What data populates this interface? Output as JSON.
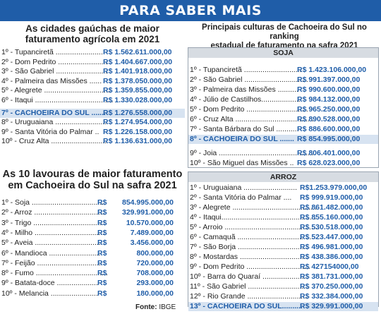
{
  "banner": "PARA SABER MAIS",
  "left_top": {
    "title_line1": "As cidades gaúchas de maior",
    "title_line2": "faturamento agrícola em 2021",
    "rows": [
      {
        "label": "1º - Tupanciretã .......................",
        "value": "R$ 1.562.611.000,00"
      },
      {
        "label": "2º - Dom Pedrito ........................",
        "value": "R$ 1.404.667.000,00"
      },
      {
        "label": "3º - São Gabriel .........................",
        "value": "R$ 1.401.918.000,00"
      },
      {
        "label": "4º - Palmeira das Missões ......",
        "value": "R$ 1.378.050.000,00"
      },
      {
        "label": "5º - Alegrete .................................",
        "value": "R$ 1.359.855.000,00"
      },
      {
        "label": "6º - Itaqui ......................................",
        "value": "R$ 1.330.028.000,00"
      },
      {
        "label": "7º - CACHOEIRA DO SUL .......",
        "value": "R$ 1.276.558.000,00",
        "highlight": true
      },
      {
        "label": "8º - Uruguaiana .........................",
        "value": "R$ 1.274.954.000,00"
      },
      {
        "label": "9º - Santa Vitória do Palmar ..",
        "value": "R$ 1.226.158.000,00"
      },
      {
        "label": "10º - Cruz Alta ...........................",
        "value": "R$ 1.136.631.000,00"
      }
    ]
  },
  "left_bottom": {
    "title_line1": "As 10 lavouras de maior faturamento",
    "title_line2": "em Cachoeira do Sul na safra 2021",
    "rows": [
      {
        "label": "1º - Soja ....................................",
        "currency": "R$",
        "value": "854.995.000,00"
      },
      {
        "label": "2º - Arroz ..................................",
        "currency": "R$",
        "value": "329.991.000,00"
      },
      {
        "label": "3º - Trigo ...................................",
        "currency": "R$",
        "value": "10.570.000,00"
      },
      {
        "label": "4º - Milho ..................................",
        "currency": "R$",
        "value": "7.489.000,00"
      },
      {
        "label": "5º - Aveia ..................................",
        "currency": "R$",
        "value": "3.456.000,00"
      },
      {
        "label": "6º - Mandioca .........................",
        "currency": "R$",
        "value": "800.000,00"
      },
      {
        "label": "7º - Feijão .................................",
        "currency": "R$",
        "value": "720.000,00"
      },
      {
        "label": "8º - Fumo ...................................",
        "currency": "R$",
        "value": "708.000,00"
      },
      {
        "label": "9º - Batata-doce ....................",
        "currency": "R$",
        "value": "293.000,00"
      },
      {
        "label": "10º - Melancia .......................",
        "currency": "R$",
        "value": "180.000,00"
      }
    ],
    "source_label": "Fonte:",
    "source_value": "IBGE"
  },
  "right": {
    "title_line1": "Principais culturas de Cachoeira do Sul no ranking",
    "title_line2": "estadual de faturamento na safra 2021",
    "soja": {
      "header": "SOJA",
      "rows": [
        {
          "label": "1º - Tupanciretã ............................",
          "value": "R$ 1.423.106.000,00"
        },
        {
          "label": "2º - São Gabriel ...............................",
          "value": "R$ 991.397.000,00"
        },
        {
          "label": "3º - Palmeira das Missões ..........",
          "value": "R$ 990.600.000,00"
        },
        {
          "label": "4º - Júlio de Castilhos...................",
          "value": "R$ 984.132.000,00"
        },
        {
          "label": "5º - Dom Pedrito ..............................",
          "value": "R$ 965.250.000,00"
        },
        {
          "label": "6º - Cruz Alta .......................................",
          "value": "R$ 890.528.000,00"
        },
        {
          "label": "7º - Santa Bárbara do Sul ...........",
          "value": "R$ 886.600.000,00"
        },
        {
          "label": "8º - CACHOEIRA DO SUL .......",
          "value": "R$ 854.995.000,00",
          "highlight": true
        },
        {
          "label": "9º - Joia ..............................................",
          "value": "R$ 806.401.000,00"
        },
        {
          "label": "10º - São Miguel das Missões ..",
          "value": "R$ 628.023.000,00"
        }
      ]
    },
    "arroz": {
      "header": "ARROZ",
      "rows": [
        {
          "label": "1º - Uruguaiana ..........................",
          "value": "R$1.253.979.000,00"
        },
        {
          "label": "2º - Santa Vitória do Palmar ....",
          "value": "R$ 999.919.000,00"
        },
        {
          "label": "3º - Alegrete .........................................",
          "value": "R$ 861.482.000,00"
        },
        {
          "label": "4º - Itaqui...............................................",
          "value": "R$ 855.160.000,00"
        },
        {
          "label": "5º - Arroio ..............................................",
          "value": "R$ 530.518.000,00"
        },
        {
          "label": "6º - Camaquã .....................................",
          "value": "R$ 523.447.000,00"
        },
        {
          "label": "7º - São Borja ..................................",
          "value": "R$ 496.981.000,00"
        },
        {
          "label": "8º - Mostardas .................................",
          "value": "R$ 438.386.000,00"
        },
        {
          "label": "9º - Dom Pedrito ...............................",
          "value": "R$ 427154000,00"
        },
        {
          "label": "10º - Barra do Quaraí .....................",
          "value": "R$ 381.731.000,00"
        },
        {
          "label": "11º - São Gabriel ..............................",
          "value": "R$ 370.250.000,00"
        },
        {
          "label": "12º - Rio Grande ..............................",
          "value": "R$ 332.384.000,00"
        },
        {
          "label": "13º - CACHOEIRA DO SUL..........",
          "value": "R$ 329.991.000,00",
          "highlight": true
        }
      ]
    }
  }
}
